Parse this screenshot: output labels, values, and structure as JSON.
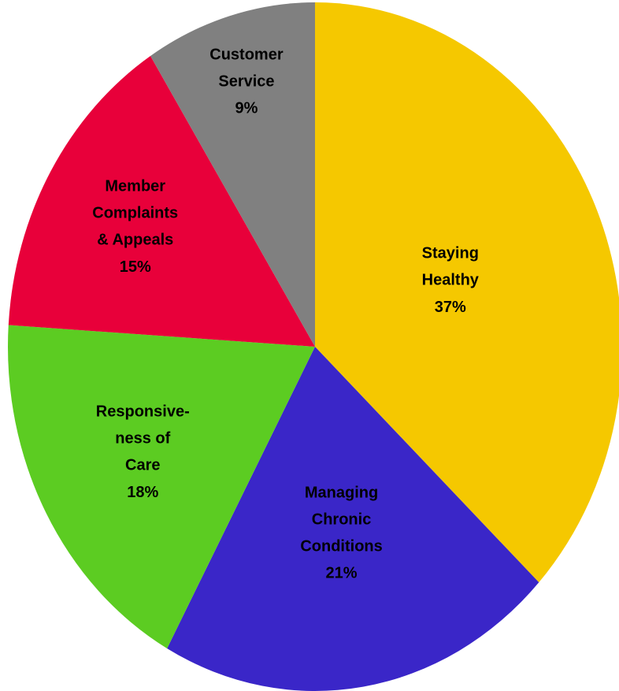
{
  "chart_data": {
    "type": "pie",
    "categories": [
      "Staying\nHealthy",
      "Managing\nChronic\nConditions",
      "Responsive-\nness of\nCare",
      "Member\nComplaints\n& Appeals",
      "Customer\nService"
    ],
    "values": [
      37,
      21,
      18,
      15,
      9
    ],
    "value_labels": [
      "37%",
      "21%",
      "18%",
      "15%",
      "9%"
    ],
    "colors": [
      "#f5c800",
      "#3a26c8",
      "#5ccc22",
      "#e8003a",
      "#808080"
    ]
  }
}
